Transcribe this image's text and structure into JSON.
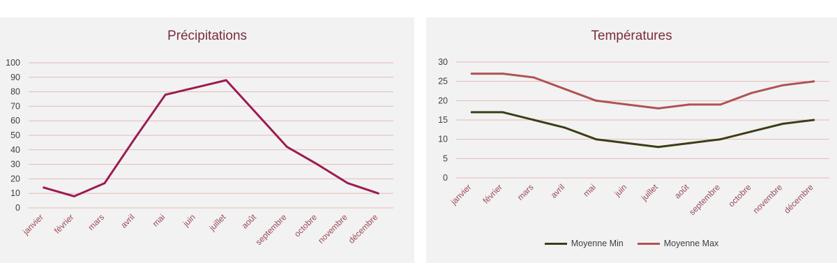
{
  "chart_data": [
    {
      "type": "line",
      "title": "Précipitations",
      "xlabel": "",
      "ylabel": "",
      "ylim": [
        0,
        100
      ],
      "yticks": [
        0,
        10,
        20,
        30,
        40,
        50,
        60,
        70,
        80,
        90,
        100
      ],
      "categories": [
        "janvier",
        "février",
        "mars",
        "avril",
        "mai",
        "juin",
        "juillet",
        "août",
        "septembre",
        "octobre",
        "novembre",
        "décembre"
      ],
      "series": [
        {
          "color": "#9b1b52",
          "values": [
            14,
            8,
            17,
            48,
            78,
            83,
            88,
            65,
            42,
            30,
            17,
            10
          ]
        }
      ],
      "grid": true,
      "legend": "none"
    },
    {
      "type": "line",
      "title": "Températures",
      "xlabel": "",
      "ylabel": "",
      "ylim": [
        0,
        30
      ],
      "yticks": [
        0,
        5,
        10,
        15,
        20,
        25,
        30
      ],
      "categories": [
        "janvier",
        "février",
        "mars",
        "avril",
        "mai",
        "juin",
        "juillet",
        "août",
        "septembre",
        "octobre",
        "novembre",
        "décembre"
      ],
      "series": [
        {
          "name": "Moyenne Min",
          "color": "#3d3d16",
          "values": [
            17,
            17,
            15,
            13,
            10,
            9,
            8,
            9,
            10,
            12,
            14,
            15
          ]
        },
        {
          "name": "Moyenne Max",
          "color": "#b05256",
          "values": [
            27,
            27,
            26,
            23,
            20,
            19,
            18,
            19,
            19,
            22,
            24,
            25
          ]
        }
      ],
      "grid": true,
      "legend": "bottom"
    }
  ],
  "colors": {
    "panel_background": "#f2f2f2",
    "gridline": "#e6b8b8",
    "title_text": "#7b2c3a",
    "category_text": "#9b4a57",
    "value_text": "#404040"
  }
}
